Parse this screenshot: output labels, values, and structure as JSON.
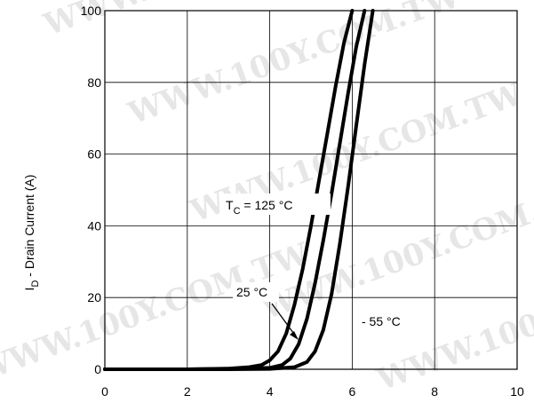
{
  "chart_data": {
    "type": "line",
    "xlim": [
      0,
      10
    ],
    "ylim": [
      0,
      100
    ],
    "x_ticks": [
      "0",
      "2",
      "4",
      "6",
      "8",
      "10"
    ],
    "y_ticks": [
      "0",
      "20",
      "40",
      "60",
      "80",
      "100"
    ],
    "grid": true,
    "ylabel_main": "I",
    "ylabel_sub": "D",
    "ylabel_rest": " -   Drain Current (A)",
    "series": [
      {
        "name_main": "T",
        "name_sub": "C",
        "name_rest": " = 125 °C",
        "x": [
          0,
          1,
          2,
          3,
          3.5,
          3.8,
          4.0,
          4.2,
          4.4,
          4.6,
          4.8,
          5.0,
          5.2,
          5.4,
          5.6,
          5.8,
          6.0
        ],
        "y": [
          0,
          0,
          0,
          0.2,
          0.6,
          1.2,
          2.5,
          5,
          10,
          18,
          28,
          40,
          53,
          66,
          79,
          91,
          100
        ]
      },
      {
        "name": "25 °C",
        "x": [
          0,
          1,
          2,
          3,
          4.0,
          4.3,
          4.5,
          4.7,
          4.9,
          5.1,
          5.3,
          5.5,
          5.7,
          5.9,
          6.1,
          6.3
        ],
        "y": [
          0,
          0,
          0,
          0.1,
          0.4,
          1.2,
          3,
          7,
          14,
          24,
          36,
          49,
          63,
          77,
          90,
          100
        ]
      },
      {
        "name": "- 55 °C",
        "x": [
          0,
          1,
          2,
          3,
          4.0,
          4.6,
          4.9,
          5.1,
          5.3,
          5.5,
          5.7,
          5.9,
          6.1,
          6.3,
          6.5
        ],
        "y": [
          0,
          0,
          0,
          0,
          0.1,
          0.6,
          2,
          5,
          11,
          21,
          35,
          51,
          68,
          85,
          100
        ]
      }
    ]
  },
  "watermark": "WWW.100Y.COM.TW"
}
